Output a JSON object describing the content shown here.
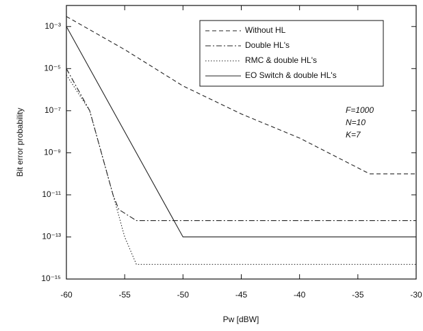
{
  "chart_data": {
    "type": "line",
    "x_label": "Pw   [dBW]",
    "y_label": "Bit error probability",
    "xlim": [
      -60,
      -30
    ],
    "xticks": [
      -60,
      -55,
      -50,
      -45,
      -40,
      -35,
      -30
    ],
    "ylim": [
      1e-15,
      0.01
    ],
    "yscale": "log",
    "yticks": [
      {
        "value": 0.001,
        "label": "10⁻³"
      },
      {
        "value": 1e-05,
        "label": "10⁻⁵"
      },
      {
        "value": 1e-07,
        "label": "10⁻⁷"
      },
      {
        "value": 1e-09,
        "label": "10⁻⁹"
      },
      {
        "value": 1e-11,
        "label": "10⁻¹¹"
      },
      {
        "value": 1e-13,
        "label": "10⁻¹³"
      },
      {
        "value": 1e-15,
        "label": "10⁻¹⁵"
      }
    ],
    "legend": "upper right",
    "annotations": [
      "F=1000",
      "N=10",
      "K=7"
    ],
    "series": [
      {
        "name": "Without HL",
        "color": "#222",
        "dash": "6,4",
        "x": [
          -60,
          -55,
          -50,
          -45,
          -40,
          -34,
          -30
        ],
        "values": [
          0.003,
          8e-05,
          1.5e-06,
          7e-08,
          5e-09,
          1e-10,
          1e-10
        ]
      },
      {
        "name": "Double HL's",
        "color": "#222",
        "dash": "8,3,2,3",
        "x": [
          -60,
          -58,
          -57,
          -56,
          -55.5,
          -54,
          -30
        ],
        "values": [
          1e-05,
          1e-07,
          1e-09,
          1e-11,
          2e-12,
          6e-13,
          6e-13
        ]
      },
      {
        "name": "RMC & double HL's",
        "color": "#222",
        "dash": "1.5,2.5",
        "x": [
          -60,
          -58,
          -57,
          -56,
          -55,
          -54,
          -30
        ],
        "values": [
          5e-06,
          1e-07,
          1e-09,
          1e-11,
          1e-13,
          5e-15,
          5e-15
        ]
      },
      {
        "name": "EO Switch & double HL's",
        "color": "#222",
        "dash": "none",
        "x": [
          -60,
          -50,
          -30
        ],
        "values": [
          0.001,
          1e-13,
          1e-13
        ]
      }
    ]
  }
}
